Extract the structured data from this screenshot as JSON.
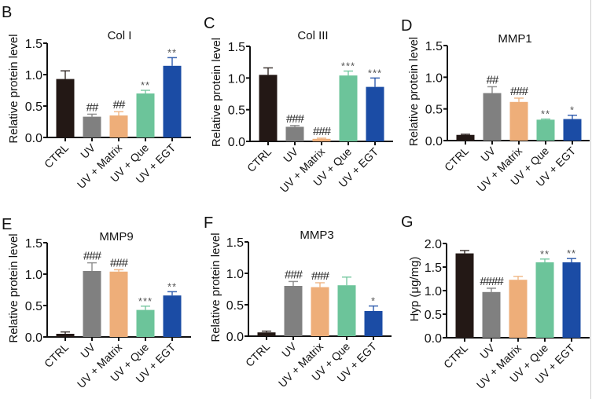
{
  "categories": [
    "CTRL",
    "UV",
    "UV + Matrix",
    "UV + Que",
    "UV + EGT"
  ],
  "colors": {
    "CTRL": "#231815",
    "UV": "#808080",
    "UV + Matrix": "#EEAE79",
    "UV + Que": "#6CC49A",
    "UV + EGT": "#1B4CA5",
    "axis": "#111111",
    "annotation": "#222222",
    "asterisk": "#555555"
  },
  "chart_data": [
    {
      "panel": "B",
      "type": "bar",
      "title": "Col I",
      "ylabel": "Relative protein level",
      "xlabel": "",
      "ylim": [
        0,
        1.5
      ],
      "yticks": [
        "0.0",
        "0.5",
        "1.0",
        "1.5"
      ],
      "categories": [
        "CTRL",
        "UV",
        "UV + Matrix",
        "UV + Que",
        "UV + EGT"
      ],
      "values": [
        0.93,
        0.33,
        0.35,
        0.7,
        1.14
      ],
      "errors": [
        0.13,
        0.04,
        0.06,
        0.05,
        0.13
      ],
      "annotations": [
        "",
        "##",
        "##",
        "**",
        "**"
      ]
    },
    {
      "panel": "C",
      "type": "bar",
      "title": "Col III",
      "ylabel": "Relative protein level",
      "xlabel": "",
      "ylim": [
        0,
        1.5
      ],
      "yticks": [
        "0.0",
        "0.5",
        "1.0",
        "1.5"
      ],
      "categories": [
        "CTRL",
        "UV",
        "UV + Matrix",
        "UV + Que",
        "UV + EGT"
      ],
      "values": [
        1.05,
        0.23,
        0.04,
        1.04,
        0.86
      ],
      "errors": [
        0.11,
        0.02,
        0.01,
        0.07,
        0.14
      ],
      "annotations": [
        "",
        "###",
        "###",
        "***",
        "***"
      ]
    },
    {
      "panel": "D",
      "type": "bar",
      "title": "MMP1",
      "ylabel": "Relative protein level",
      "xlabel": "",
      "ylim": [
        0,
        1.5
      ],
      "yticks": [
        "0.0",
        "0.5",
        "1.0",
        "1.5"
      ],
      "categories": [
        "CTRL",
        "UV",
        "UV + Matrix",
        "UV + Que",
        "UV + EGT"
      ],
      "values": [
        0.09,
        0.75,
        0.61,
        0.33,
        0.34
      ],
      "errors": [
        0.01,
        0.1,
        0.06,
        0.01,
        0.06
      ],
      "annotations": [
        "",
        "##",
        "###",
        "**",
        "*"
      ]
    },
    {
      "panel": "E",
      "type": "bar",
      "title": "MMP9",
      "ylabel": "Relative protein level",
      "xlabel": "",
      "ylim": [
        0,
        1.5
      ],
      "yticks": [
        "0.0",
        "0.5",
        "1.0",
        "1.5"
      ],
      "categories": [
        "CTRL",
        "UV",
        "UV + Matrix",
        "UV + Que",
        "UV + EGT"
      ],
      "values": [
        0.05,
        1.05,
        1.04,
        0.43,
        0.66
      ],
      "errors": [
        0.03,
        0.13,
        0.03,
        0.06,
        0.06
      ],
      "annotations": [
        "",
        "###",
        "###",
        "***",
        "**"
      ]
    },
    {
      "panel": "F",
      "type": "bar",
      "title": "MMP3",
      "ylabel": "Relative protein level",
      "xlabel": "",
      "ylim": [
        0,
        1.5
      ],
      "yticks": [
        "0.0",
        "0.5",
        "1.0",
        "1.5"
      ],
      "categories": [
        "CTRL",
        "UV",
        "UV + Matrix",
        "UV + Que",
        "UV + EGT"
      ],
      "values": [
        0.06,
        0.8,
        0.78,
        0.81,
        0.4
      ],
      "errors": [
        0.02,
        0.07,
        0.07,
        0.13,
        0.08
      ],
      "annotations": [
        "",
        "###",
        "###",
        "",
        "*"
      ]
    },
    {
      "panel": "G",
      "type": "bar",
      "title": "",
      "ylabel": "Hyp (μg/mg)",
      "xlabel": "",
      "ylim": [
        0,
        2.0
      ],
      "yticks": [
        "0.0",
        "0.5",
        "1.0",
        "1.5",
        "2.0"
      ],
      "categories": [
        "CTRL",
        "UV",
        "UV + Matrix",
        "UV + Que",
        "UV + EGT"
      ],
      "values": [
        1.79,
        0.97,
        1.23,
        1.6,
        1.6
      ],
      "errors": [
        0.06,
        0.08,
        0.07,
        0.07,
        0.08
      ],
      "annotations": [
        "",
        "####",
        "",
        "**",
        "**"
      ]
    }
  ]
}
